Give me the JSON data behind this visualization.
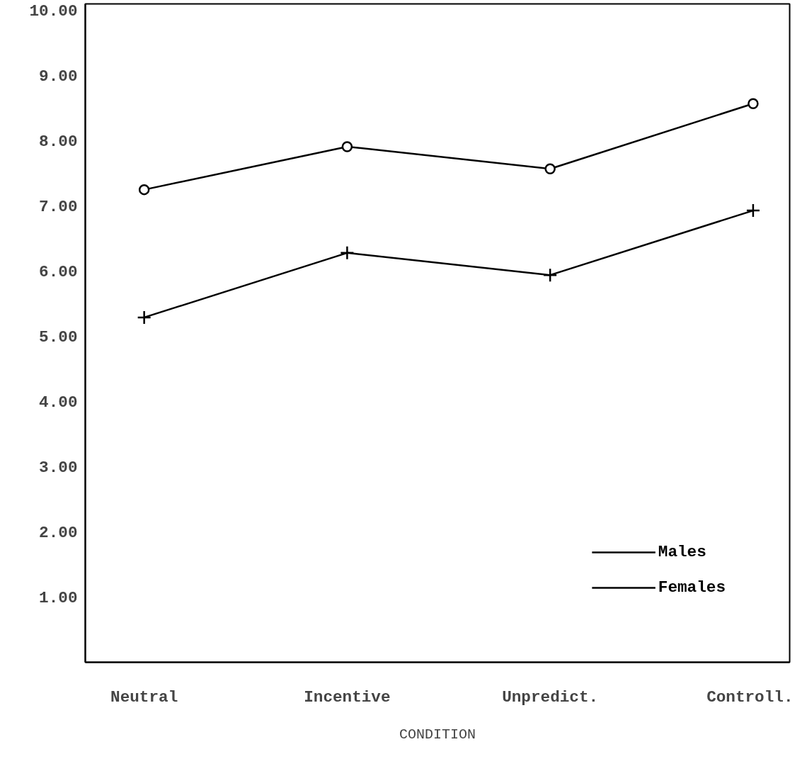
{
  "chart_data": {
    "type": "line",
    "xlabel": "CONDITION",
    "categories": [
      "Neutral",
      "Incentive",
      "Unpredict.",
      "Controll."
    ],
    "series": [
      {
        "name": "Males",
        "color": "#000000",
        "marker": "circle",
        "values": [
          7.25,
          7.91,
          7.57,
          8.57
        ]
      },
      {
        "name": "Females",
        "color": "#000000",
        "marker": "cross",
        "values": [
          5.29,
          6.28,
          5.94,
          6.93
        ]
      }
    ],
    "ylim": [
      0,
      10.1
    ],
    "yticks": [
      {
        "value": 1,
        "label": "1.00"
      },
      {
        "value": 2,
        "label": "2.00"
      },
      {
        "value": 3,
        "label": "3.00"
      },
      {
        "value": 4,
        "label": "4.00"
      },
      {
        "value": 5,
        "label": "5.00"
      },
      {
        "value": 6,
        "label": "6.00"
      },
      {
        "value": 7,
        "label": "7.00"
      },
      {
        "value": 8,
        "label": "8.00"
      },
      {
        "value": 9,
        "label": "9.00"
      },
      {
        "value": 10,
        "label": "10.00"
      }
    ],
    "grid": false,
    "legend": "bottom right",
    "line_style": "solid"
  }
}
